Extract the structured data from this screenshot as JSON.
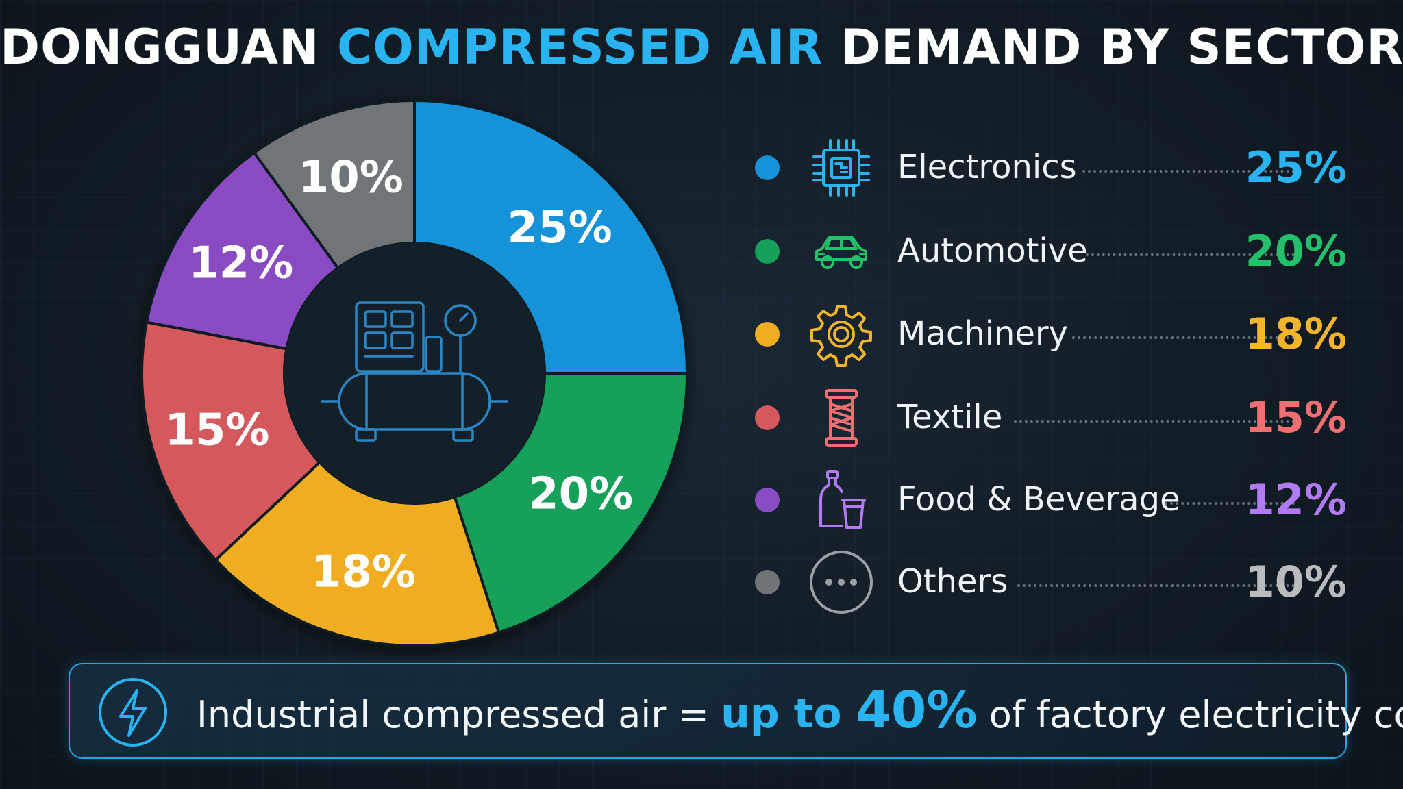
{
  "title": {
    "part1": "DONGGUAN ",
    "part2": "COMPRESSED AIR",
    "part3": " DEMAND BY SECTOR"
  },
  "chart_data": {
    "type": "pie",
    "donut": true,
    "title": "DONGGUAN COMPRESSED AIR DEMAND BY SECTOR",
    "unit": "%",
    "center_icon": "air-compressor-icon",
    "legend_position": "right",
    "slices": [
      {
        "label": "Electronics",
        "value": 25,
        "display": "25%",
        "color": "#1592d8",
        "icon": "microchip-icon"
      },
      {
        "label": "Automotive",
        "value": 20,
        "display": "20%",
        "color": "#16a05a",
        "icon": "car-icon"
      },
      {
        "label": "Machinery",
        "value": 18,
        "display": "18%",
        "color": "#f0ad22",
        "icon": "gear-icon"
      },
      {
        "label": "Textile",
        "value": 15,
        "display": "15%",
        "color": "#d4585c",
        "icon": "thread-spool-icon"
      },
      {
        "label": "Food & Beverage",
        "value": 12,
        "display": "12%",
        "color": "#8a4cc2",
        "icon": "bottle-cup-icon"
      },
      {
        "label": "Others",
        "value": 10,
        "display": "10%",
        "color": "#6f7479",
        "icon": "ellipsis-icon"
      }
    ]
  },
  "legend_value_colors": [
    "#29b3f0",
    "#22c06a",
    "#f4b52c",
    "#ef6f72",
    "#b07cf0",
    "#b9bcbf"
  ],
  "banner": {
    "icon": "lightning-icon",
    "text1": "Industrial compressed air = ",
    "text2": "up to ",
    "text3": "40%",
    "text4": " of factory electricity cost."
  }
}
